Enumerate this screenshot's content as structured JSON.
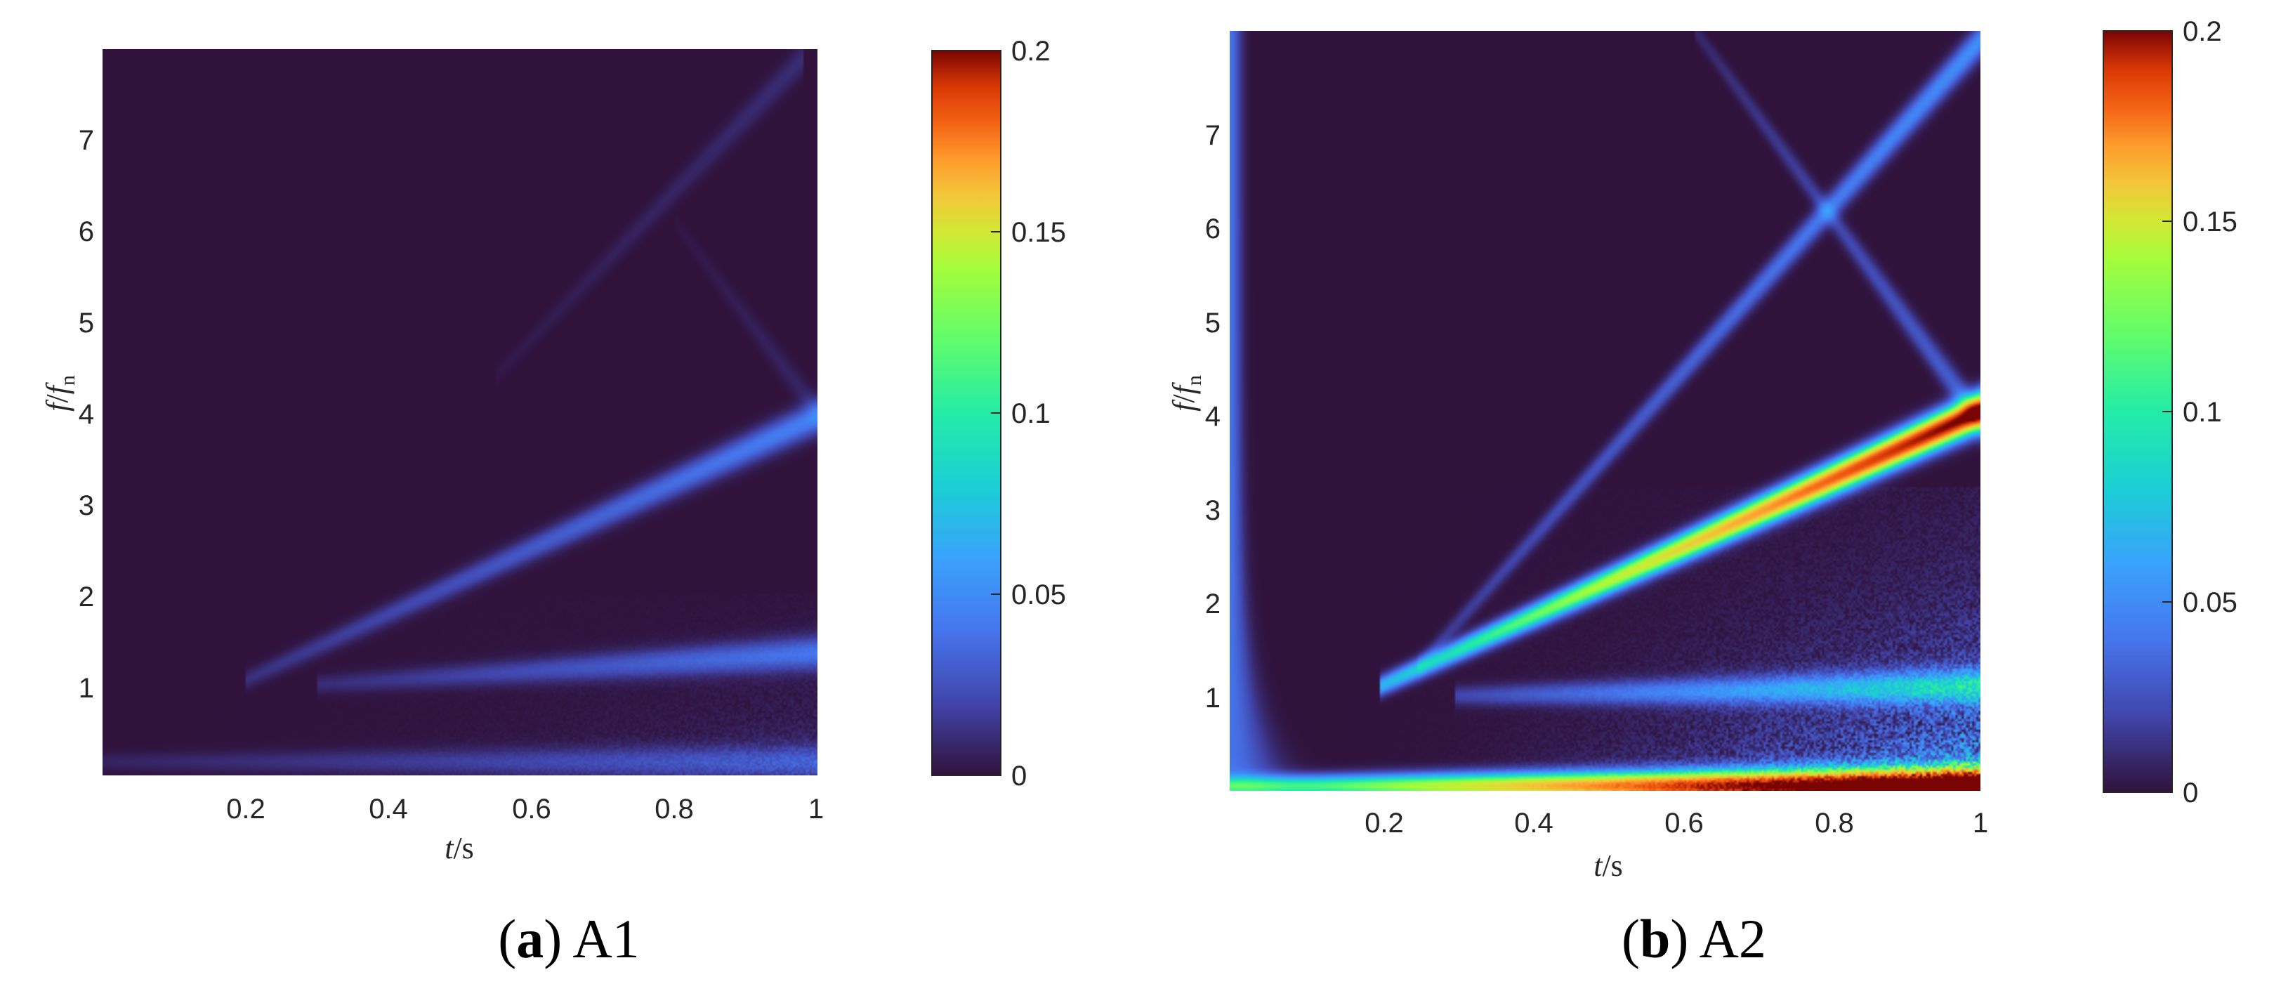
{
  "chart_data": [
    {
      "type": "heatmap",
      "panel": "a",
      "caption_letter": "a",
      "caption_text": "A1",
      "xlabel": "t",
      "xlabel_unit": "/s",
      "ylabel_main": "f",
      "ylabel_sep": "/",
      "ylabel_denom": "f",
      "ylabel_sub": "n",
      "xlim": [
        0,
        1
      ],
      "ylim": [
        0,
        8
      ],
      "xticks": [
        "0.2",
        "0.4",
        "0.6",
        "0.8",
        "1"
      ],
      "yticks": [
        "1",
        "2",
        "3",
        "4",
        "5",
        "6",
        "7"
      ],
      "colorbar": {
        "min": 0,
        "max": 0.2,
        "ticks": [
          "0",
          "0.05",
          "0.1",
          "0.15",
          "0.2"
        ]
      },
      "ridges": [
        {
          "t": [
            0.2,
            1.0
          ],
          "f": [
            1.05,
            3.95
          ],
          "peak": 0.035
        },
        {
          "t": [
            0.3,
            1.0
          ],
          "f": [
            1.0,
            1.35
          ],
          "peak": 0.03
        },
        {
          "t": [
            0.55,
            0.98
          ],
          "f": [
            4.4,
            7.9
          ],
          "peak": 0.008
        },
        {
          "t": [
            0.8,
            1.0
          ],
          "f": [
            6.1,
            4.0
          ],
          "peak": 0.006
        },
        {
          "t": [
            0.0,
            1.0
          ],
          "f": [
            0.15,
            0.15
          ],
          "peak": 0.02
        }
      ]
    },
    {
      "type": "heatmap",
      "panel": "b",
      "caption_letter": "b",
      "caption_text": "A2",
      "xlabel": "t",
      "xlabel_unit": "/s",
      "ylabel_main": "f",
      "ylabel_sep": "/",
      "ylabel_denom": "f",
      "ylabel_sub": "n",
      "xlim": [
        0,
        1
      ],
      "ylim": [
        0,
        8
      ],
      "xticks": [
        "0.2",
        "0.4",
        "0.6",
        "0.8",
        "1"
      ],
      "yticks": [
        "1",
        "2",
        "3",
        "4",
        "5",
        "6",
        "7"
      ],
      "colorbar": {
        "min": 0,
        "max": 0.2,
        "ticks": [
          "0",
          "0.05",
          "0.1",
          "0.15",
          "0.2"
        ]
      },
      "ridges": [
        {
          "t": [
            0.2,
            1.0
          ],
          "f": [
            1.1,
            4.0
          ],
          "peak": 0.21
        },
        {
          "t": [
            0.25,
            1.0
          ],
          "f": [
            1.3,
            7.9
          ],
          "peak": 0.04
        },
        {
          "t": [
            0.62,
            1.0
          ],
          "f": [
            8.0,
            3.9
          ],
          "peak": 0.025
        },
        {
          "t": [
            0.3,
            1.0
          ],
          "f": [
            1.0,
            1.1
          ],
          "peak": 0.06
        },
        {
          "t": [
            0.0,
            1.0
          ],
          "f": [
            0.05,
            0.05
          ],
          "peak": 0.25
        }
      ]
    }
  ]
}
